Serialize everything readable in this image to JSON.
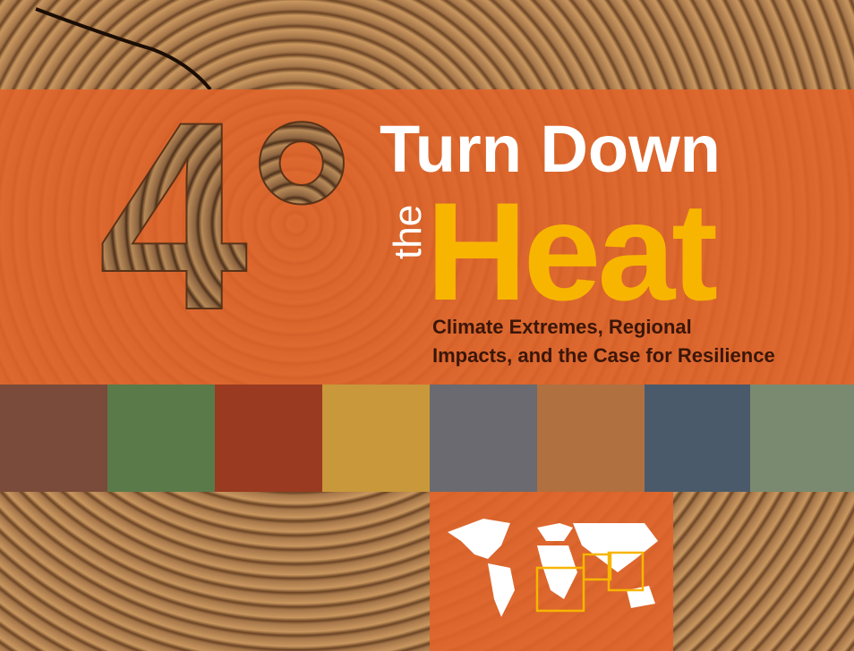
{
  "cover": {
    "mark": "4°",
    "title_line1": "Turn Down",
    "title_small": "the",
    "title_big": "Heat",
    "subtitle": [
      "Climate Extremes, Regional",
      "Impacts, and the Case for Resilience"
    ]
  }
}
